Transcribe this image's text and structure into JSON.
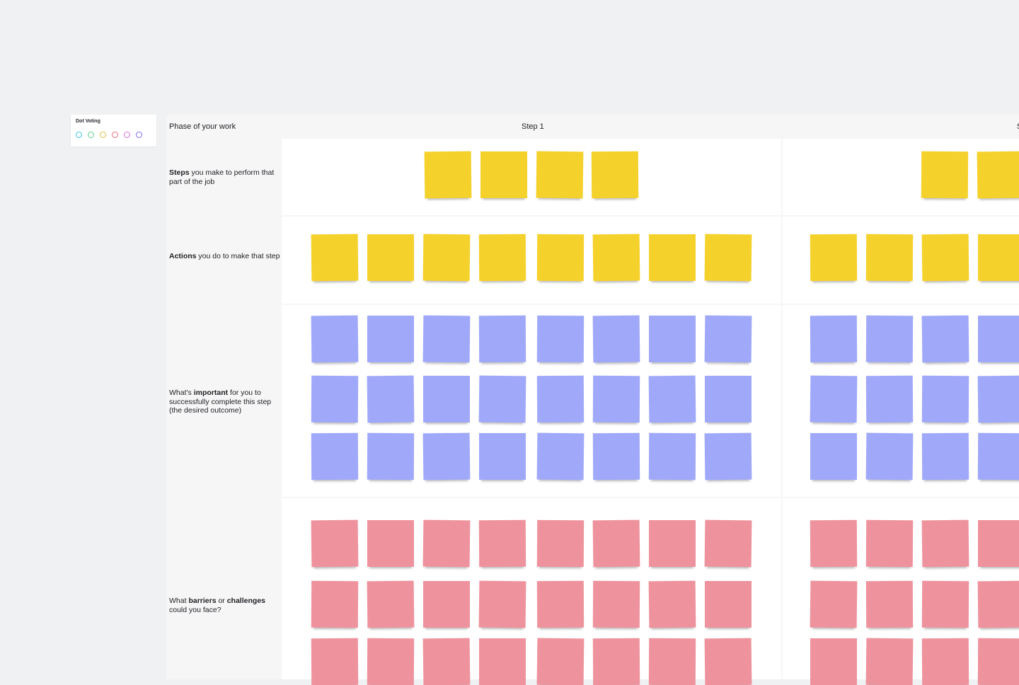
{
  "dot_voting": {
    "title": "Dot Voting",
    "dots": [
      {
        "name": "cyan",
        "color": "#34c4e0"
      },
      {
        "name": "green",
        "color": "#5fd08b"
      },
      {
        "name": "yellow",
        "color": "#e0c23a"
      },
      {
        "name": "red",
        "color": "#ee6b78"
      },
      {
        "name": "magenta",
        "color": "#d96bd5"
      },
      {
        "name": "purple",
        "color": "#7a6bf0"
      }
    ]
  },
  "board": {
    "phase_label": "Phase of your work",
    "columns": [
      "Step 1",
      "S"
    ],
    "rows": [
      {
        "bold": "Steps",
        "text_before": "",
        "text_after": " you make to perform that part of the job",
        "note_color": "yellow"
      },
      {
        "bold": "Actions",
        "text_before": "",
        "text_after": " you do to make that step",
        "note_color": "yellow"
      },
      {
        "bold": "important",
        "text_before": "What's ",
        "text_after": " for you to successfully complete this step (the desired outcome)",
        "note_color": "blue"
      },
      {
        "bold": "barriers",
        "text_before": "What ",
        "text_after": " or ",
        "bold2": "challenges",
        "text_after2": " could you face?",
        "note_color": "pink"
      }
    ]
  },
  "colors": {
    "yellow": "#f5d12c",
    "blue": "#a0a9f9",
    "pink": "#ee939d"
  }
}
